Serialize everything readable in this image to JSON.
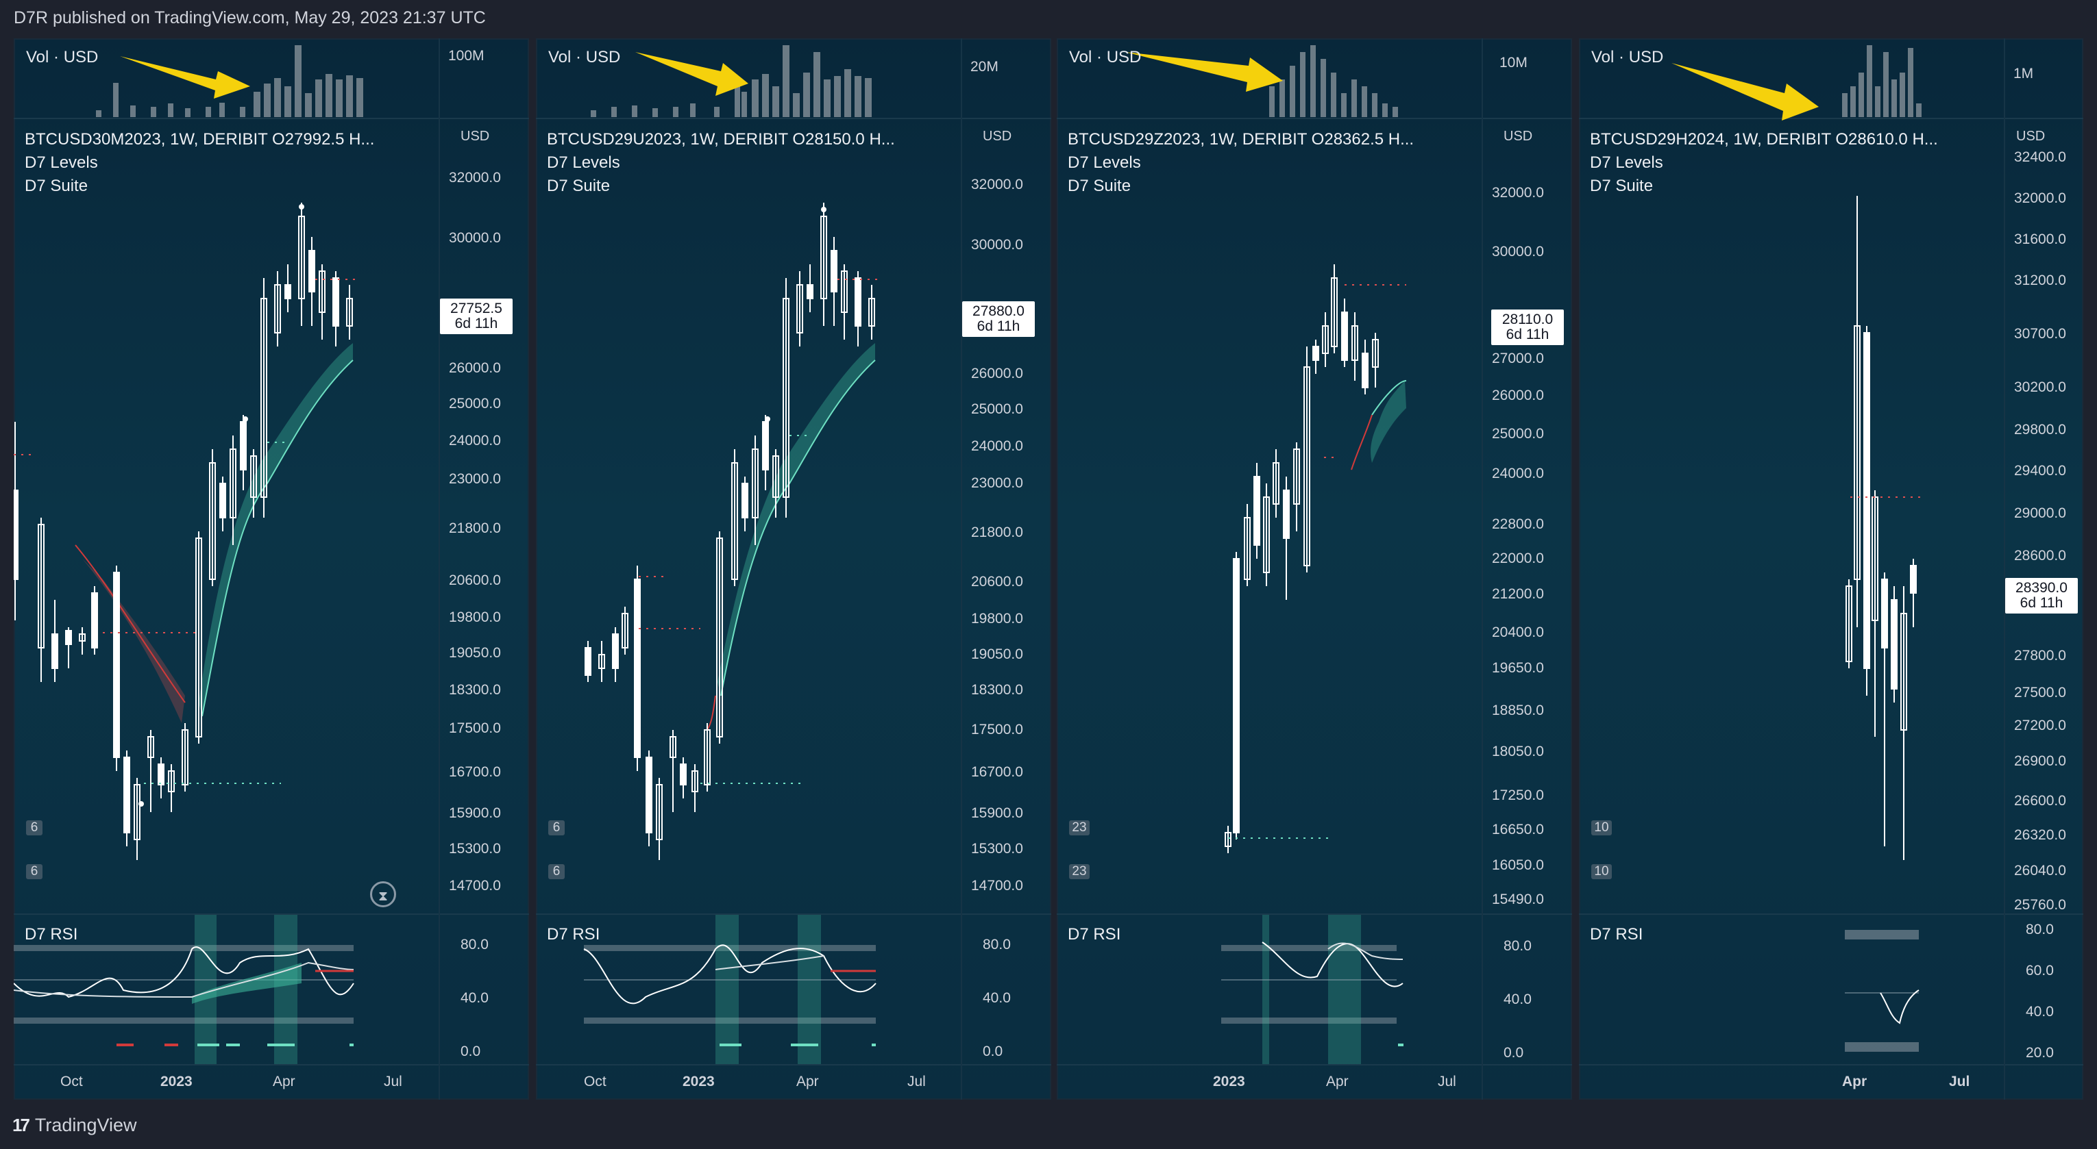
{
  "header": {
    "published": "D7R published on TradingView.com, May 29, 2023 21:37 UTC"
  },
  "footer": {
    "brand": "TradingView",
    "logo_text": "17"
  },
  "panels": [
    {
      "vol_title": "Vol · USD",
      "vol_scale": "100M",
      "symbol_line": "BTCUSD30M2023, 1W, DERIBIT  O27992.5  H...",
      "indicator1": "D7 Levels",
      "indicator2": "D7 Suite",
      "currency": "USD",
      "yticks": [
        "32000.0",
        "30000.0",
        "26000.0",
        "25000.0",
        "24000.0",
        "23000.0",
        "21800.0",
        "20600.0",
        "19800.0",
        "19050.0",
        "18300.0",
        "17500.0",
        "16700.0",
        "15900.0",
        "15300.0",
        "14700.0"
      ],
      "price": "27752.5",
      "countdown": "6d 11h",
      "pane_labels": [
        "6",
        "6"
      ],
      "rsi_title": "D7 RSI",
      "rsi_ticks": [
        "80.0",
        "40.0",
        "0.0"
      ],
      "xticks": [
        "Oct",
        "2023",
        "Apr",
        "Jul"
      ]
    },
    {
      "vol_title": "Vol · USD",
      "vol_scale": "20M",
      "symbol_line": "BTCUSD29U2023, 1W, DERIBIT  O28150.0  H...",
      "indicator1": "D7 Levels",
      "indicator2": "D7 Suite",
      "currency": "USD",
      "yticks": [
        "32000.0",
        "30000.0",
        "26000.0",
        "25000.0",
        "24000.0",
        "23000.0",
        "21800.0",
        "20600.0",
        "19800.0",
        "19050.0",
        "18300.0",
        "17500.0",
        "16700.0",
        "15900.0",
        "15300.0",
        "14700.0"
      ],
      "price": "27880.0",
      "countdown": "6d 11h",
      "pane_labels": [
        "6",
        "6"
      ],
      "rsi_title": "D7 RSI",
      "rsi_ticks": [
        "80.0",
        "40.0",
        "0.0"
      ],
      "xticks": [
        "Oct",
        "2023",
        "Apr",
        "Jul"
      ]
    },
    {
      "vol_title": "Vol · USD",
      "vol_scale": "10M",
      "symbol_line": "BTCUSD29Z2023, 1W, DERIBIT  O28362.5  H...",
      "indicator1": "D7 Levels",
      "indicator2": "D7 Suite",
      "currency": "USD",
      "yticks": [
        "32000.0",
        "30000.0",
        "27000.0",
        "26000.0",
        "25000.0",
        "24000.0",
        "22800.0",
        "22000.0",
        "21200.0",
        "20400.0",
        "19650.0",
        "18850.0",
        "18050.0",
        "17250.0",
        "16650.0",
        "16050.0",
        "15490.0"
      ],
      "price": "28110.0",
      "countdown": "6d 11h",
      "pane_labels": [
        "23",
        "23"
      ],
      "rsi_title": "D7 RSI",
      "rsi_ticks": [
        "80.0",
        "40.0",
        "0.0"
      ],
      "xticks": [
        "2023",
        "Apr",
        "Jul"
      ]
    },
    {
      "vol_title": "Vol · USD",
      "vol_scale": "1M",
      "symbol_line": "BTCUSD29H2024, 1W, DERIBIT  O28610.0  H...",
      "indicator1": "D7 Levels",
      "indicator2": "D7 Suite",
      "currency": "USD",
      "yticks": [
        "32400.0",
        "32000.0",
        "31600.0",
        "31200.0",
        "30700.0",
        "30200.0",
        "29800.0",
        "29400.0",
        "29000.0",
        "28600.0",
        "27800.0",
        "27500.0",
        "27200.0",
        "26900.0",
        "26600.0",
        "26320.0",
        "26040.0",
        "25760.0"
      ],
      "price": "28390.0",
      "countdown": "6d 11h",
      "pane_labels": [
        "10",
        "10"
      ],
      "rsi_title": "D7 RSI",
      "rsi_ticks": [
        "80.0",
        "60.0",
        "40.0",
        "20.0"
      ],
      "xticks": [
        "Apr",
        "Jul"
      ]
    }
  ],
  "colors": {
    "bg": "#1e222d",
    "panel": "#0b3447",
    "arrow": "#f5d10c",
    "band": "#3fbfa0",
    "bear": "#d13a3a"
  }
}
